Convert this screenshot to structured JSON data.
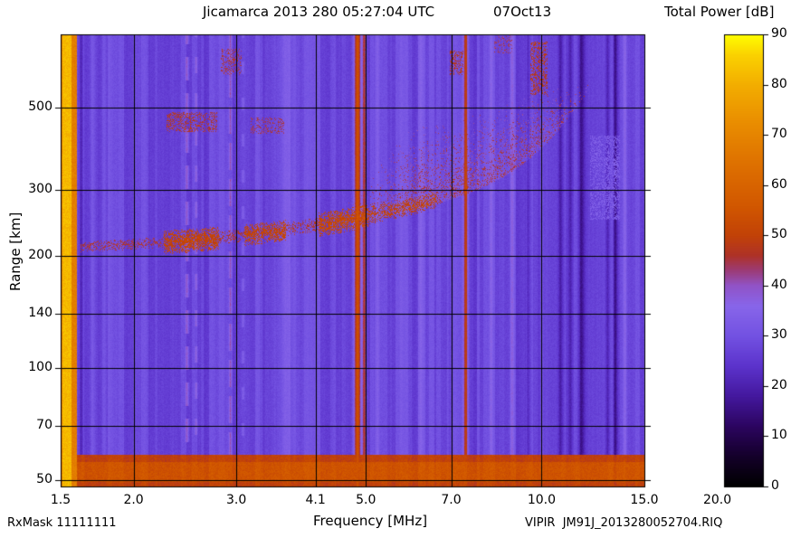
{
  "titles": {
    "left": "Jicamarca 2013 280 05:27:04 UTC",
    "right": "07Oct13",
    "colorbar": "Total Power [dB]"
  },
  "labels": {
    "x": "Frequency [MHz]",
    "y": "Range [km]"
  },
  "footer": {
    "rxmask": "RxMask 11111111",
    "file": "VIPIR  JM91J_2013280052704.RIQ"
  },
  "chart_data": {
    "type": "heatmap",
    "title": "Jicamarca 2013 280 05:27:04 UTC    07Oct13",
    "xlabel": "Frequency [MHz]",
    "ylabel": "Range [km]",
    "zlabel": "Total Power [dB]",
    "x_scale": "log",
    "y_scale": "log",
    "x_ticks": [
      1.5,
      2.0,
      3.0,
      4.1,
      5.0,
      7.0,
      10.0,
      15.0,
      20.0
    ],
    "x_tick_labels": [
      "1.5",
      "2.0",
      "3.0",
      "4.1",
      "5.0",
      "7.0",
      "10.0",
      "15.0",
      "20.0"
    ],
    "x_gridlines": [
      2.0,
      3.0,
      4.1,
      5.0,
      7.0,
      10.0
    ],
    "y_ticks": [
      50,
      70,
      100,
      140,
      200,
      300,
      500
    ],
    "y_tick_labels": [
      "50",
      "70",
      "100",
      "140",
      "200",
      "300",
      "500"
    ],
    "x_range_frame": [
      1.5,
      15.0
    ],
    "x_range_axis": [
      1.5,
      20.0
    ],
    "y_range": [
      48,
      786
    ],
    "z_range": [
      0,
      90
    ],
    "colorbar_ticks": [
      0,
      10,
      20,
      30,
      40,
      50,
      60,
      70,
      80,
      90
    ],
    "colormap_stops": [
      [
        0,
        "#000000"
      ],
      [
        6,
        "#14002a"
      ],
      [
        12,
        "#2c0560"
      ],
      [
        18,
        "#44189e"
      ],
      [
        24,
        "#5c33cc"
      ],
      [
        30,
        "#7352e2"
      ],
      [
        36,
        "#8866ea"
      ],
      [
        40,
        "#9154c8"
      ],
      [
        43,
        "#9c3c78"
      ],
      [
        46,
        "#ae3228"
      ],
      [
        50,
        "#c24208"
      ],
      [
        56,
        "#d25800"
      ],
      [
        64,
        "#de7000"
      ],
      [
        72,
        "#e98c00"
      ],
      [
        80,
        "#f3ae00"
      ],
      [
        86,
        "#fbd200"
      ],
      [
        90,
        "#ffff00"
      ]
    ],
    "features": {
      "background_db": 28,
      "column_noise": {
        "amplitude": 3.2,
        "block_min": 2,
        "block_max": 7
      },
      "pixel_noise": 1.4,
      "left_band": {
        "f_range": [
          1.5,
          1.6
        ],
        "core_f": [
          1.51,
          1.565
        ],
        "db": 68,
        "core_db": 82
      },
      "bottom_band": {
        "r_range": [
          48,
          58.5
        ],
        "core_r": [
          49.5,
          56.0
        ],
        "db": 50,
        "core_db": 55
      },
      "vertical_stripes": [
        {
          "f": 1.63,
          "w": 1.2,
          "db": -8
        },
        {
          "f": 1.7,
          "w": 2.0,
          "db": 5
        },
        {
          "f": 1.78,
          "w": 1.4,
          "db": 4
        },
        {
          "f": 2.47,
          "w": 1.2,
          "db": 14,
          "dash": [
            26,
            14
          ]
        },
        {
          "f": 2.56,
          "w": 1.0,
          "db": 9,
          "dash": [
            18,
            22
          ]
        },
        {
          "f": 2.93,
          "w": 1.1,
          "db": 12,
          "dash": [
            30,
            10
          ]
        },
        {
          "f": 3.08,
          "w": 1.0,
          "db": 6,
          "dash": [
            14,
            26
          ]
        },
        {
          "f": 3.7,
          "w": 8.0,
          "db": 3
        },
        {
          "f": 4.84,
          "w": 2.6,
          "db": 27
        },
        {
          "f": 4.97,
          "w": 1.4,
          "db": 18
        },
        {
          "f": 5.23,
          "w": 2.0,
          "db": 6
        },
        {
          "f": 5.75,
          "w": 7.0,
          "db": 3
        },
        {
          "f": 6.2,
          "w": 2.2,
          "db": 4
        },
        {
          "f": 7.42,
          "w": 1.8,
          "db": 19
        },
        {
          "f": 8.2,
          "w": 1.2,
          "db": 5
        },
        {
          "f": 8.9,
          "w": 1.6,
          "db": 8
        },
        {
          "f": 9.5,
          "w": 1.5,
          "db": -6
        },
        {
          "f": 10.8,
          "w": 2.2,
          "db": -9
        },
        {
          "f": 11.2,
          "w": 1.6,
          "db": -7
        },
        {
          "f": 11.7,
          "w": 2.6,
          "db": -10
        },
        {
          "f": 13.0,
          "w": 1.8,
          "db": -8
        },
        {
          "f": 13.4,
          "w": 2.2,
          "db": -9
        },
        {
          "f": 13.9,
          "w": 1.6,
          "db": 5
        }
      ],
      "trace": [
        [
          1.65,
          212
        ],
        [
          2.0,
          215
        ],
        [
          2.5,
          220
        ],
        [
          3.0,
          226
        ],
        [
          3.5,
          233
        ],
        [
          4.0,
          241
        ],
        [
          4.5,
          248
        ],
        [
          5.0,
          256
        ],
        [
          5.5,
          264
        ],
        [
          6.0,
          272
        ],
        [
          6.5,
          281
        ],
        [
          7.0,
          291
        ],
        [
          7.5,
          302
        ],
        [
          8.0,
          315
        ],
        [
          8.5,
          330
        ],
        [
          9.0,
          348
        ],
        [
          9.5,
          370
        ],
        [
          10.0,
          396
        ],
        [
          10.5,
          428
        ],
        [
          11.0,
          466
        ],
        [
          12.0,
          560
        ]
      ],
      "trace_segments": [
        {
          "f_range": [
            1.62,
            2.25
          ],
          "thickness_km": 7,
          "db": 46,
          "density": 0.5
        },
        {
          "f_range": [
            2.25,
            2.8
          ],
          "thickness_km": 16,
          "db": 51,
          "density": 0.85
        },
        {
          "f_range": [
            2.8,
            3.1
          ],
          "thickness_km": 9,
          "db": 47,
          "density": 0.5
        },
        {
          "f_range": [
            3.1,
            3.65
          ],
          "thickness_km": 15,
          "db": 51,
          "density": 0.8
        },
        {
          "f_range": [
            3.65,
            4.15
          ],
          "thickness_km": 10,
          "db": 47,
          "density": 0.5
        },
        {
          "f_range": [
            4.15,
            5.05
          ],
          "thickness_km": 18,
          "db": 52,
          "density": 0.85
        },
        {
          "f_range": [
            5.05,
            6.6
          ],
          "thickness_km": 14,
          "db": 49,
          "density": 0.6
        }
      ],
      "spread_cloud": {
        "f_range": [
          4.4,
          12.3
        ],
        "full_from_f": 6.0,
        "full_to_f": 10.0,
        "top_extra_km_max": 170,
        "db_min": 38,
        "db_max": 50,
        "density": 0.35
      },
      "patches": [
        {
          "f_range": [
            2.28,
            2.78
          ],
          "r_range": [
            430,
            485
          ],
          "db": 47,
          "density": 0.35
        },
        {
          "f_range": [
            3.18,
            3.62
          ],
          "r_range": [
            425,
            470
          ],
          "db": 45,
          "density": 0.3
        },
        {
          "f_range": [
            2.82,
            3.06
          ],
          "r_range": [
            610,
            720
          ],
          "db": 46,
          "density": 0.3
        },
        {
          "f_range": [
            6.95,
            7.35
          ],
          "r_range": [
            610,
            710
          ],
          "db": 47,
          "density": 0.35
        },
        {
          "f_range": [
            9.55,
            10.25
          ],
          "r_range": [
            540,
            750
          ],
          "db": 48,
          "density": 0.4
        },
        {
          "f_range": [
            8.3,
            8.9
          ],
          "r_range": [
            700,
            780
          ],
          "db": 44,
          "density": 0.25
        },
        {
          "f_range": [
            12.1,
            13.6
          ],
          "r_range": [
            250,
            420
          ],
          "db": 33,
          "density": 0.5
        }
      ]
    }
  }
}
